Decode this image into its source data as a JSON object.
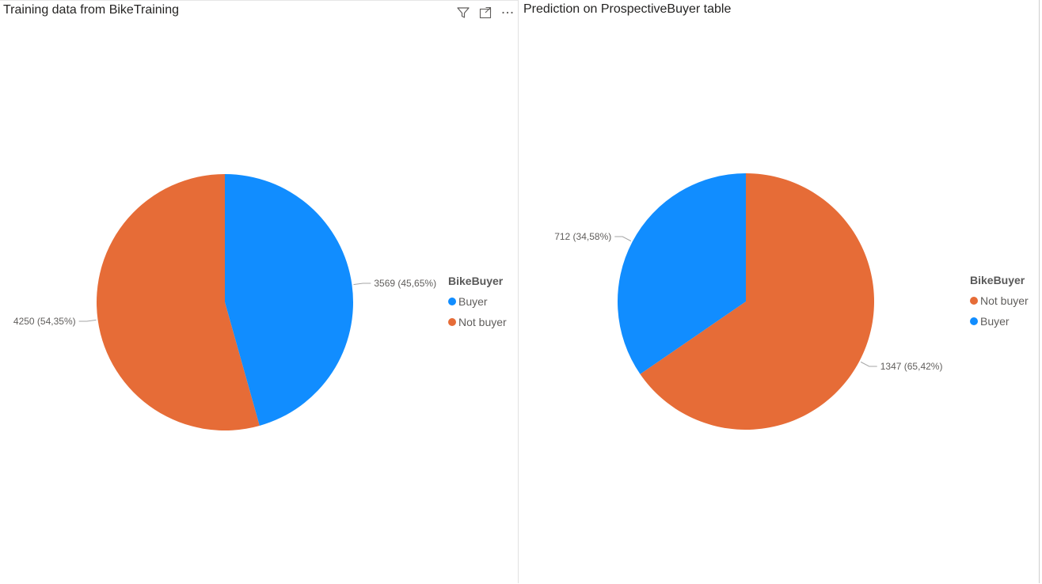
{
  "colors": {
    "buyer": "#118dff",
    "not_buyer": "#e66c37"
  },
  "header_icons": [
    "filter-icon",
    "focus-mode-icon",
    "more-options-icon"
  ],
  "chart_data": [
    {
      "type": "pie",
      "title": "Training data from BikeTraining",
      "legend_title": "BikeBuyer",
      "legend_position": "right",
      "slices": [
        {
          "label": "Buyer",
          "value": 3569,
          "percent": 45.65,
          "data_label": "3569 (45,65%)",
          "color": "#118dff"
        },
        {
          "label": "Not buyer",
          "value": 4250,
          "percent": 54.35,
          "data_label": "4250 (54,35%)",
          "color": "#e66c37"
        }
      ]
    },
    {
      "type": "pie",
      "title": "Prediction on ProspectiveBuyer table",
      "legend_title": "BikeBuyer",
      "legend_position": "right",
      "slices": [
        {
          "label": "Not buyer",
          "value": 1347,
          "percent": 65.42,
          "data_label": "1347 (65,42%)",
          "color": "#e66c37"
        },
        {
          "label": "Buyer",
          "value": 712,
          "percent": 34.58,
          "data_label": "712 (34,58%)",
          "color": "#118dff"
        }
      ]
    }
  ]
}
